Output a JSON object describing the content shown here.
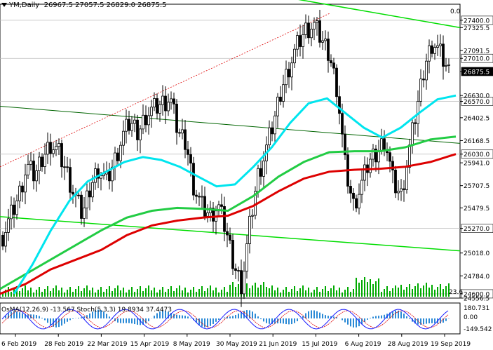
{
  "header": {
    "symbol": "YM,Daily",
    "ohlc": "26967.5 27057.5 26829.0 26875.5"
  },
  "corner_value": "0.0",
  "volume_label": "23.6",
  "indicator_header": "OsMA(12,26,9) -13.567 Stoch(5,3,3) 19.8934 37.4473",
  "price_labels": [
    {
      "text": "27400.0",
      "value": 27400,
      "highlight": true
    },
    {
      "text": "27325.5",
      "value": 27325.5
    },
    {
      "text": "27091.5",
      "value": 27091.5
    },
    {
      "text": "27010.0",
      "value": 27010,
      "highlight": true
    },
    {
      "text": "26875.5",
      "value": 26875.5,
      "current": true
    },
    {
      "text": "26570.0",
      "value": 26570,
      "highlight": true
    },
    {
      "text": "26630.0",
      "value": 26630
    },
    {
      "text": "26402.5",
      "value": 26402.5
    },
    {
      "text": "26168.5",
      "value": 26168.5
    },
    {
      "text": "26030.0",
      "value": 26030,
      "highlight": true
    },
    {
      "text": "25941.0",
      "value": 25941
    },
    {
      "text": "25707.5",
      "value": 25707.5
    },
    {
      "text": "25479.5",
      "value": 25479.5
    },
    {
      "text": "25270.0",
      "value": 25270,
      "highlight": true
    },
    {
      "text": "25018.0",
      "value": 25018
    },
    {
      "text": "24784.0",
      "value": 24784
    },
    {
      "text": "24600.0",
      "value": 24600,
      "highlight": true
    },
    {
      "text": "24556.5",
      "value": 24556.5
    }
  ],
  "indicator_axis_labels": [
    "180.731",
    "0.00",
    "-149.542"
  ],
  "date_labels": [
    "6 Feb 2019",
    "28 Feb 2019",
    "22 Mar 2019",
    "15 Apr 2019",
    "8 May 2019",
    "30 May 2019",
    "21 Jun 2019",
    "15 Jul 2019",
    "6 Aug 2019",
    "28 Aug 2019",
    "19 Sep 2019"
  ],
  "colors": {
    "candle": "#000000",
    "ema_cyan": "#00e5ee",
    "ema_green": "#22cc44",
    "ema_red": "#dd0000",
    "trend_green": "#00dd00",
    "channel_dark": "#006400",
    "dotted_red": "#dd0000",
    "volume": "#00aa00",
    "stoch_main": "#1a1aff",
    "stoch_signal": "#dd0000",
    "osma": "#2b8ad6"
  },
  "chart_data": {
    "type": "candlestick",
    "symbol": "YM",
    "timeframe": "Daily",
    "open": 26967.5,
    "high": 27057.5,
    "low": 26829.0,
    "close": 26875.5,
    "ylim": [
      24556.5,
      27550
    ],
    "close_path": [
      25200,
      25400,
      25600,
      25900,
      25800,
      26000,
      26150,
      26050,
      25850,
      25600,
      25400,
      25700,
      25900,
      25750,
      25950,
      26200,
      26350,
      26250,
      26450,
      26500,
      26550,
      26600,
      26250,
      26150,
      25700,
      25500,
      25400,
      25500,
      25250,
      24900,
      24700,
      25300,
      25800,
      26050,
      26350,
      26700,
      26950,
      27150,
      27300,
      27350,
      27200,
      27050,
      26700,
      25900,
      25500,
      25700,
      25950,
      26050,
      26200,
      25750,
      25600,
      26050,
      26500,
      26950,
      27200,
      27050,
      26875.5
    ],
    "ema_cyan": [
      24600,
      24900,
      25250,
      25550,
      25750,
      25850,
      25950,
      26000,
      25970,
      25900,
      25800,
      25700,
      25720,
      25900,
      26100,
      26350,
      26550,
      26600,
      26450,
      26300,
      26200,
      26300,
      26450,
      26590,
      26630
    ],
    "ema_green": [
      24650,
      24800,
      24950,
      25100,
      25250,
      25380,
      25450,
      25480,
      25470,
      25450,
      25600,
      25800,
      25950,
      26050,
      26060,
      26060,
      26100,
      26180,
      26210
    ],
    "ema_red": [
      24600,
      24700,
      24850,
      24950,
      25050,
      25200,
      25300,
      25350,
      25380,
      25400,
      25500,
      25650,
      25780,
      25850,
      25870,
      25880,
      25900,
      25950,
      26030
    ],
    "levels": [
      27400,
      27010,
      26570,
      26030,
      25270,
      24600
    ]
  }
}
